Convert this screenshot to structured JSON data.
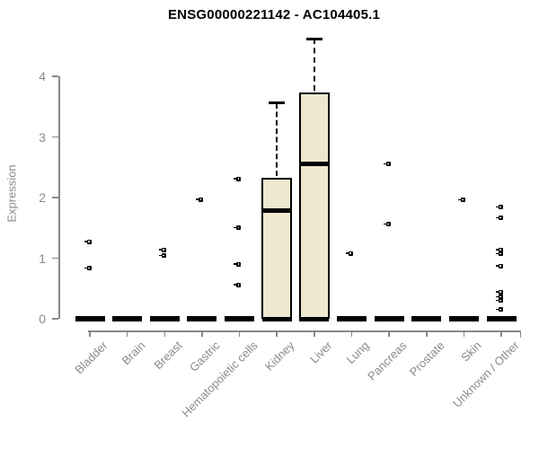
{
  "title": "ENSG00000221142 - AC104405.1",
  "colors": {
    "box_fill": "#EDE8D0",
    "box_border": "#000000",
    "median": "#000000",
    "outlier": "#000000",
    "axis": "#888888",
    "text_muted": "#8a8a8a",
    "title_text": "#000000"
  },
  "chart_data": {
    "type": "boxplot",
    "title": "ENSG00000221142 - AC104405.1",
    "xlabel": "",
    "ylabel": "Expression",
    "ylim": [
      0,
      4
    ],
    "yticks": [
      0,
      1,
      2,
      3,
      4
    ],
    "grid": false,
    "legend": "none",
    "categories": [
      "Bladder",
      "Brain",
      "Breast",
      "Gastric",
      "Hematopoietic cells",
      "Kidney",
      "Liver",
      "Lung",
      "Pancreas",
      "Prostate",
      "Skin",
      "Unknown / Other"
    ],
    "boxes": [
      {
        "category": "Bladder",
        "q1": 0,
        "median": 0,
        "q3": 0,
        "whisker_low": 0,
        "whisker_high": 0,
        "outliers": [
          1.27,
          0.83
        ]
      },
      {
        "category": "Brain",
        "q1": 0,
        "median": 0,
        "q3": 0,
        "whisker_low": 0,
        "whisker_high": 0,
        "outliers": []
      },
      {
        "category": "Breast",
        "q1": 0,
        "median": 0,
        "q3": 0,
        "whisker_low": 0,
        "whisker_high": 0,
        "outliers": [
          1.14,
          1.04
        ]
      },
      {
        "category": "Gastric",
        "q1": 0,
        "median": 0,
        "q3": 0,
        "whisker_low": 0,
        "whisker_high": 0,
        "outliers": [
          1.97
        ]
      },
      {
        "category": "Hematopoietic cells",
        "q1": 0,
        "median": 0,
        "q3": 0,
        "whisker_low": 0,
        "whisker_high": 0,
        "outliers": [
          2.31,
          1.5,
          0.9,
          0.56
        ]
      },
      {
        "category": "Kidney",
        "q1": 0,
        "median": 1.78,
        "q3": 2.33,
        "whisker_low": 0,
        "whisker_high": 3.56,
        "outliers": []
      },
      {
        "category": "Liver",
        "q1": 0,
        "median": 2.56,
        "q3": 3.73,
        "whisker_low": 0,
        "whisker_high": 4.62,
        "outliers": []
      },
      {
        "category": "Lung",
        "q1": 0,
        "median": 0,
        "q3": 0,
        "whisker_low": 0,
        "whisker_high": 0,
        "outliers": [
          1.08
        ]
      },
      {
        "category": "Pancreas",
        "q1": 0,
        "median": 0,
        "q3": 0,
        "whisker_low": 0,
        "whisker_high": 0,
        "outliers": [
          2.55,
          1.56
        ]
      },
      {
        "category": "Prostate",
        "q1": 0,
        "median": 0,
        "q3": 0,
        "whisker_low": 0,
        "whisker_high": 0,
        "outliers": []
      },
      {
        "category": "Skin",
        "q1": 0,
        "median": 0,
        "q3": 0,
        "whisker_low": 0,
        "whisker_high": 0,
        "outliers": [
          1.96
        ]
      },
      {
        "category": "Unknown / Other",
        "q1": 0,
        "median": 0,
        "q3": 0,
        "whisker_low": 0,
        "whisker_high": 0,
        "outliers": [
          1.84,
          1.66,
          1.14,
          1.07,
          0.87,
          0.44,
          0.36,
          0.3,
          0.15
        ]
      }
    ]
  }
}
